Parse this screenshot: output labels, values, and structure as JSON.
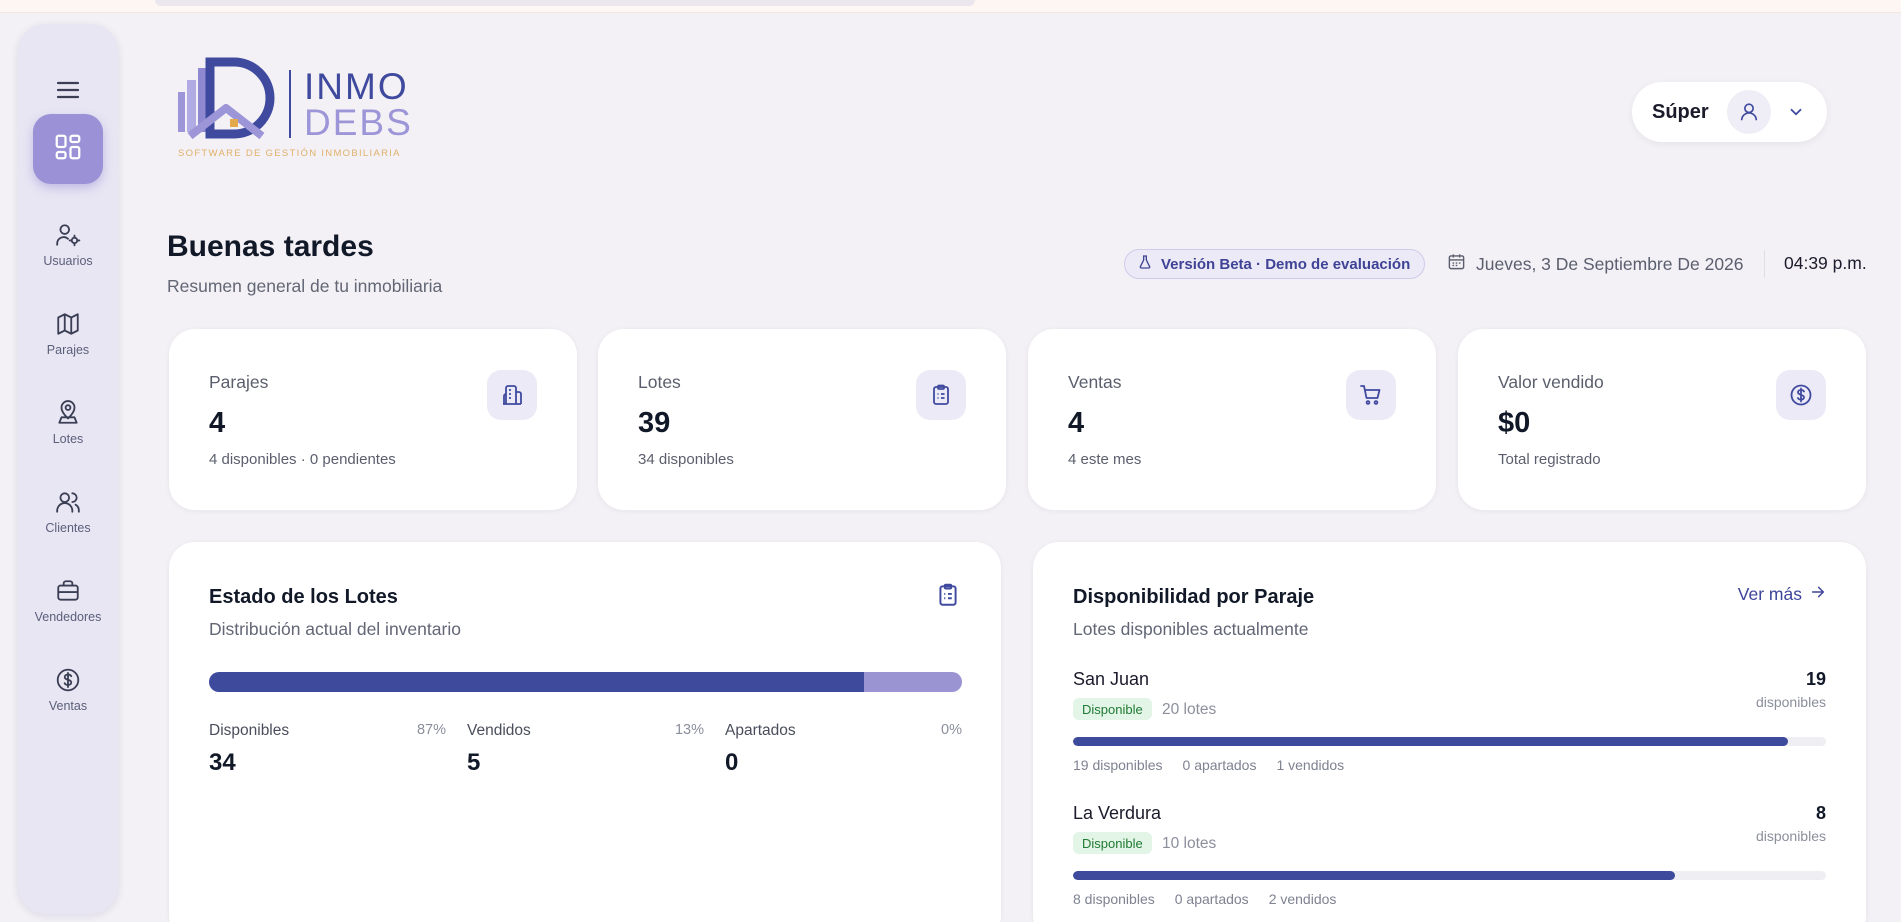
{
  "brand": {
    "logo_primary": "INMO",
    "logo_secondary": "DEBS",
    "logo_tagline": "SOFTWARE DE GESTIÓN INMOBILIARIA",
    "accent": "#9a91d6",
    "primary": "#3e4a9c"
  },
  "sidebar": {
    "menu_icon": "hamburger-icon",
    "active_icon": "dashboard-icon",
    "items": [
      {
        "label": "Usuarios",
        "icon": "user-gear-icon"
      },
      {
        "label": "Parajes",
        "icon": "map-icon"
      },
      {
        "label": "Lotes",
        "icon": "map-pin-icon"
      },
      {
        "label": "Clientes",
        "icon": "users-icon"
      },
      {
        "label": "Vendedores",
        "icon": "briefcase-icon"
      },
      {
        "label": "Ventas",
        "icon": "dollar-circle-icon"
      }
    ]
  },
  "header": {
    "user_name": "Súper",
    "greeting": "Buenas tardes",
    "subtitle": "Resumen general de tu inmobiliaria",
    "beta_label": "Versión Beta · Demo de evaluación",
    "date": "Jueves, 3 De Septiembre De 2026",
    "time": "04:39 p.m."
  },
  "stats": [
    {
      "title": "Parajes",
      "value": "4",
      "sub": "4 disponibles · 0 pendientes",
      "icon": "building-icon"
    },
    {
      "title": "Lotes",
      "value": "39",
      "sub": "34 disponibles",
      "icon": "clipboard-icon"
    },
    {
      "title": "Ventas",
      "value": "4",
      "sub": "4 este mes",
      "icon": "cart-icon"
    },
    {
      "title": "Valor vendido",
      "value": "$0",
      "sub": "Total registrado",
      "icon": "dollar-circle-icon"
    }
  ],
  "estado": {
    "title": "Estado de los Lotes",
    "subtitle": "Distribución actual del inventario",
    "icon": "clipboard-icon",
    "colors": {
      "disponibles": "#3e4a9c",
      "vendidos": "#9b94d3",
      "apartados": "#c8c2ea"
    },
    "segments": [
      {
        "label": "Disponibles",
        "pct": "87%",
        "value": "34",
        "fraction": 0.87
      },
      {
        "label": "Vendidos",
        "pct": "13%",
        "value": "5",
        "fraction": 0.13
      },
      {
        "label": "Apartados",
        "pct": "0%",
        "value": "0",
        "fraction": 0.0
      }
    ]
  },
  "disponibilidad": {
    "title": "Disponibilidad por Paraje",
    "subtitle": "Lotes disponibles actualmente",
    "ver_mas": "Ver más",
    "parajes": [
      {
        "name": "San Juan",
        "badge": "Disponible",
        "lotes": "20 lotes",
        "count": "19",
        "count_label": "disponibles",
        "fraction": 0.95,
        "meta": [
          "19 disponibles",
          "0 apartados",
          "1 vendidos"
        ]
      },
      {
        "name": "La Verdura",
        "badge": "Disponible",
        "lotes": "10 lotes",
        "count": "8",
        "count_label": "disponibles",
        "fraction": 0.8,
        "meta": [
          "8 disponibles",
          "0 apartados",
          "2 vendidos"
        ]
      }
    ]
  }
}
